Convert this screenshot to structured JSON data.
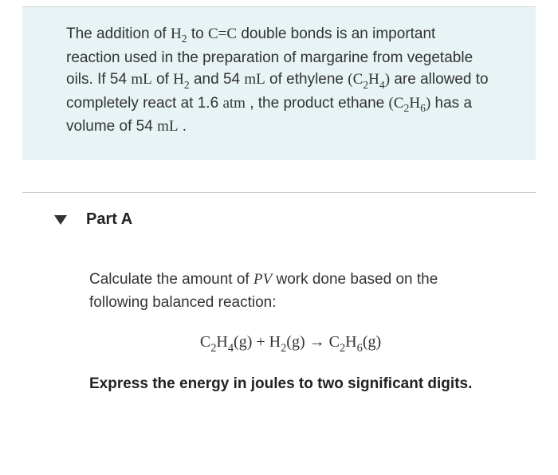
{
  "intro": {
    "seg1": "The addition of ",
    "h2_a": "H",
    "h2_a_sub": "2",
    "seg2": " to ",
    "c_eq_c": "C",
    "dbl": "=",
    "c2": "C",
    "seg3": " double bonds is an important reaction used in the preparation of margarine from vegetable oils. If 54 ",
    "ml1": "mL",
    "seg4": " of ",
    "h2_b": "H",
    "h2_b_sub": "2",
    "seg5": " and 54 ",
    "ml2": "mL",
    "seg6": " of ethylene ",
    "c2h4_open": "(C",
    "c2h4_s1": "2",
    "c2h4_mid": "H",
    "c2h4_s2": "4",
    "c2h4_close": ")",
    "seg7": " are allowed to completely react at 1.6 ",
    "atm": "atm",
    "seg8": " , the product ethane ",
    "c2h6_open": "(C",
    "c2h6_s1": "2",
    "c2h6_mid": "H",
    "c2h6_s2": "6",
    "c2h6_close": ")",
    "seg9": " has a volume of 54 ",
    "ml3": "mL",
    "seg10": " ."
  },
  "partA": {
    "label": "Part A",
    "q1": "Calculate the amount of ",
    "pv": "PV",
    "q2": " work done based on the following balanced reaction:",
    "equation": {
      "t1": "C",
      "s1": "2",
      "t2": "H",
      "s2": "4",
      "t3": "(g) + H",
      "s3": "2",
      "t4": "(g) → C",
      "s4": "2",
      "t5": "H",
      "s5": "6",
      "t6": "(g)"
    },
    "instruction": "Express the energy in joules to two significant digits."
  }
}
